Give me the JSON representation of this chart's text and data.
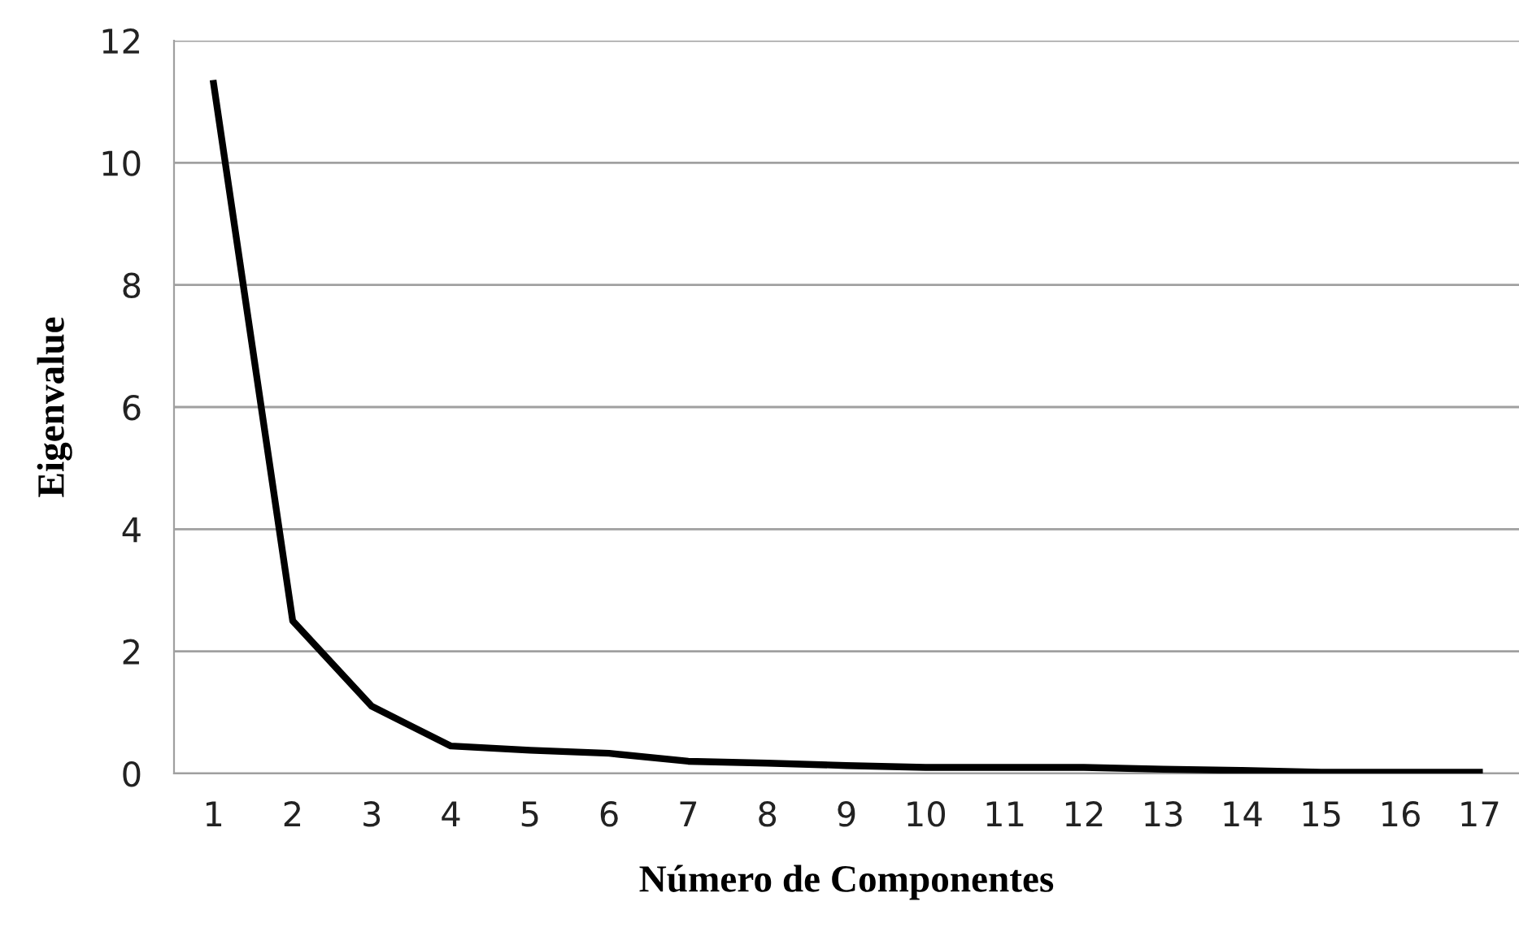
{
  "chart_data": {
    "type": "line",
    "xlabel": "Número de Componentes",
    "ylabel": "Eigenvalue",
    "categories": [
      "1",
      "2",
      "3",
      "4",
      "5",
      "6",
      "7",
      "8",
      "9",
      "10",
      "11",
      "12",
      "13",
      "14",
      "15",
      "16",
      "17"
    ],
    "series": [
      {
        "color": "#000000",
        "values": [
          11.3,
          2.5,
          1.1,
          0.45,
          0.38,
          0.33,
          0.2,
          0.17,
          0.13,
          0.1,
          0.1,
          0.1,
          0.07,
          0.05,
          0.02,
          0.02,
          0.02
        ]
      }
    ],
    "ylim": [
      0,
      12
    ],
    "yticks": [
      0,
      2,
      4,
      6,
      8,
      10,
      12
    ],
    "grid": "y",
    "legend": false,
    "marker": "none",
    "line_style": "solid"
  }
}
